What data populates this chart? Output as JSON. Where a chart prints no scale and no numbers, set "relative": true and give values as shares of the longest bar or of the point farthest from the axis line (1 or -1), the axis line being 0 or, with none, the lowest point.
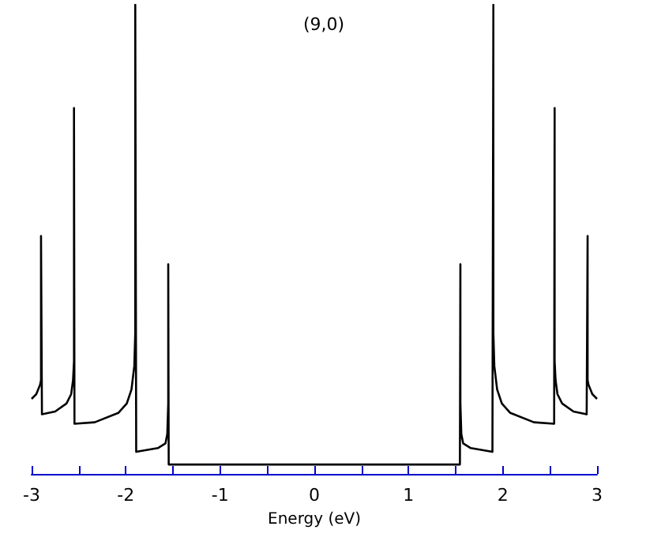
{
  "chart_data": {
    "type": "line",
    "title": "(9,0)",
    "xlabel": "Energy (eV)",
    "relative": true,
    "xlim": [
      -3,
      3
    ],
    "xticks": [
      -3,
      {
        "value": -2.5,
        "label": null
      },
      -2,
      {
        "value": -1.5,
        "label": null
      },
      -1,
      {
        "value": -0.5,
        "label": null
      },
      0,
      {
        "value": 0.5,
        "label": null
      },
      1,
      {
        "value": 1.5,
        "label": null
      },
      2,
      {
        "value": 2.5,
        "label": null
      },
      3
    ],
    "marker": "none",
    "line_style": "solid",
    "series": [
      {
        "color": "#000000",
        "x": [
          -3.0,
          -2.95,
          -2.91,
          -2.9,
          -2.9,
          -2.89,
          -2.75,
          -2.63,
          -2.58,
          -2.56,
          -2.55,
          -2.55,
          -2.545,
          -2.33,
          -2.08,
          -1.99,
          -1.94,
          -1.91,
          -1.9,
          -1.9,
          -1.89,
          -1.66,
          -1.58,
          -1.56,
          -1.55,
          -1.55,
          -1.545,
          1.545,
          1.55,
          1.55,
          1.56,
          1.58,
          1.66,
          1.89,
          1.9,
          1.9,
          1.91,
          1.94,
          1.99,
          2.08,
          2.33,
          2.545,
          2.55,
          2.55,
          2.56,
          2.58,
          2.63,
          2.75,
          2.89,
          2.9,
          2.9,
          2.91,
          2.95,
          3.0
        ],
        "values": [
          0.16,
          0.17,
          0.19,
          0.2,
          0.507,
          0.127,
          0.133,
          0.15,
          0.17,
          0.2,
          0.24,
          0.78,
          0.107,
          0.11,
          0.13,
          0.15,
          0.18,
          0.23,
          0.3,
          1,
          0.047,
          0.055,
          0.065,
          0.085,
          0.15,
          0.447,
          0.02,
          0.02,
          0.447,
          0.15,
          0.085,
          0.065,
          0.055,
          0.047,
          1,
          0.3,
          0.23,
          0.18,
          0.15,
          0.13,
          0.11,
          0.107,
          0.78,
          0.24,
          0.2,
          0.17,
          0.15,
          0.133,
          0.127,
          0.507,
          0.2,
          0.19,
          0.17,
          0.16
        ]
      }
    ]
  }
}
